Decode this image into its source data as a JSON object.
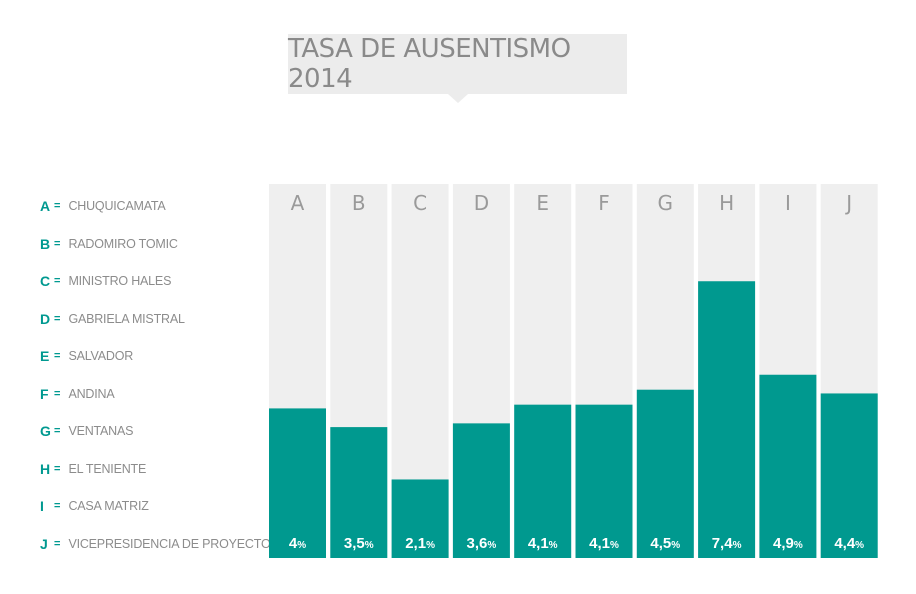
{
  "colors": {
    "bar": "#00998f",
    "column_bg": "#efefef",
    "title_bg": "#ececec",
    "accent": "#009990"
  },
  "chart_data": {
    "type": "bar",
    "title": "TASA DE AUSENTISMO 2014",
    "categories": [
      "A",
      "B",
      "C",
      "D",
      "E",
      "F",
      "G",
      "H",
      "I",
      "J"
    ],
    "values": [
      4,
      3.5,
      2.1,
      3.6,
      4.1,
      4.1,
      4.5,
      7.4,
      4.9,
      4.4
    ],
    "value_labels": [
      "4",
      "3,5",
      "2,1",
      "3,6",
      "4,1",
      "4,1",
      "4,5",
      "7,4",
      "4,9",
      "4,4"
    ],
    "value_unit": "%",
    "ylim": [
      0,
      10
    ],
    "grid": false,
    "legend": [
      {
        "code": "A",
        "sep": "=",
        "label": "CHUQUICAMATA"
      },
      {
        "code": "B",
        "sep": "=",
        "label": "RADOMIRO TOMIC"
      },
      {
        "code": "C",
        "sep": "=",
        "label": "MINISTRO HALES"
      },
      {
        "code": "D",
        "sep": "=",
        "label": "GABRIELA MISTRAL"
      },
      {
        "code": "E",
        "sep": "=",
        "label": "SALVADOR"
      },
      {
        "code": "F",
        "sep": "=",
        "label": "ANDINA"
      },
      {
        "code": "G",
        "sep": "=",
        "label": "VENTANAS"
      },
      {
        "code": "H",
        "sep": "=",
        "label": "EL TENIENTE"
      },
      {
        "code": "I",
        "sep": "=",
        "label": "CASA MATRIZ"
      },
      {
        "code": "J",
        "sep": "=",
        "label": "VICEPRESIDENCIA DE PROYECTOS"
      }
    ]
  }
}
